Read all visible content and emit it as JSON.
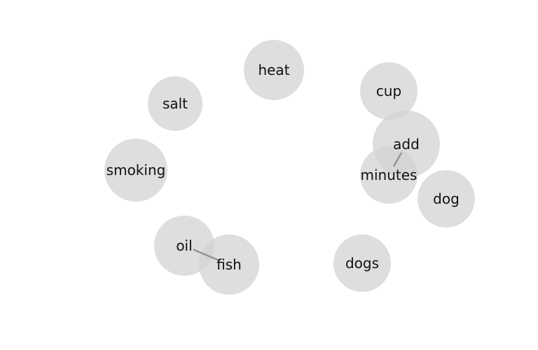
{
  "graph": {
    "nodes": [
      {
        "id": "heat",
        "label": "heat"
      },
      {
        "id": "salt",
        "label": "salt"
      },
      {
        "id": "smoking",
        "label": "smoking"
      },
      {
        "id": "oil",
        "label": "oil"
      },
      {
        "id": "fish",
        "label": "fish"
      },
      {
        "id": "cup",
        "label": "cup"
      },
      {
        "id": "add",
        "label": "add"
      },
      {
        "id": "minutes",
        "label": "minutes"
      },
      {
        "id": "dog",
        "label": "dog"
      },
      {
        "id": "dogs",
        "label": "dogs"
      }
    ],
    "edges": [
      {
        "source": "oil",
        "target": "fish"
      },
      {
        "source": "add",
        "target": "minutes"
      }
    ],
    "colors": {
      "node_fill": "#d3d3d3",
      "edge": "#8a8a8a",
      "label": "#111111"
    }
  }
}
